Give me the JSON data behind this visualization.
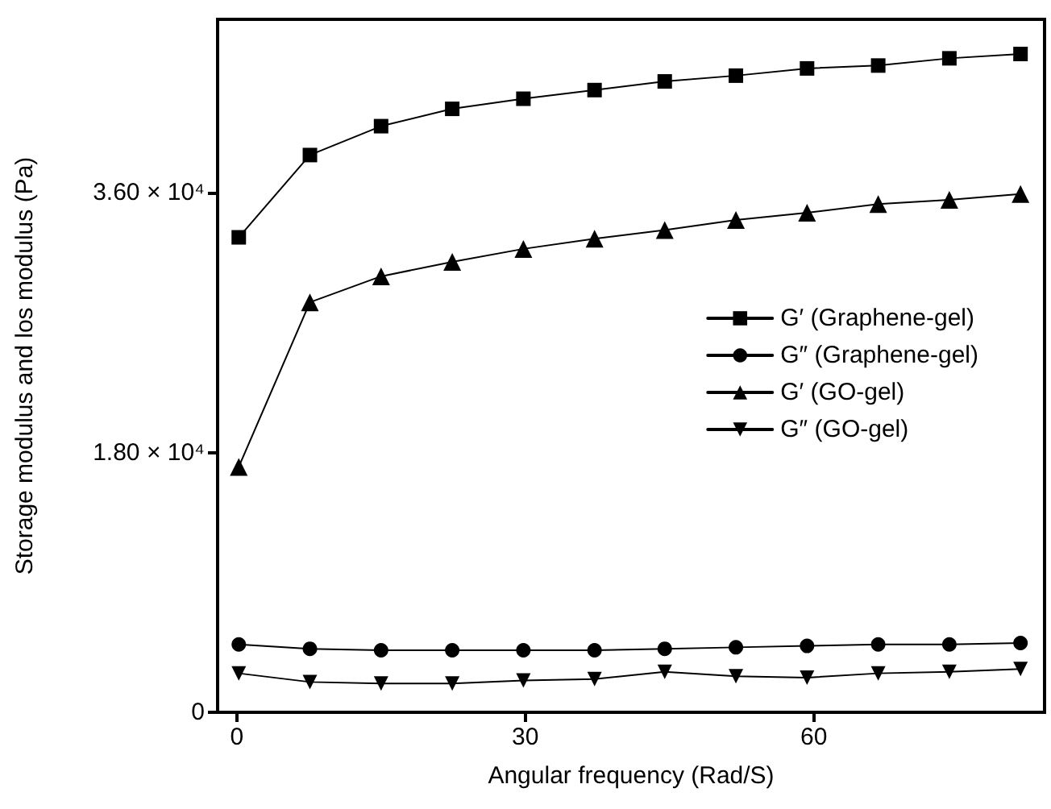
{
  "chart_data": {
    "type": "line",
    "xlabel": "Angular frequency (Rad/S)",
    "ylabel": "Storage modulus and los modulus (Pa)",
    "x": [
      0.2,
      7.6,
      15.0,
      22.4,
      29.8,
      37.2,
      44.5,
      51.9,
      59.3,
      66.7,
      74.1,
      81.5
    ],
    "xlim": [
      -2,
      84
    ],
    "xticks": [
      0,
      30,
      60
    ],
    "ylim": [
      0,
      48000
    ],
    "yticks": [
      0,
      {
        "value": 18000,
        "label": "1.80 × 10⁴"
      },
      {
        "value": 36000,
        "label": "3.60 × 10⁴"
      }
    ],
    "grid": false,
    "legend": "right",
    "line_style": "solid",
    "series": [
      {
        "name": "G′ (Graphene-gel)",
        "color": "#000000",
        "marker": "square",
        "values": [
          32900,
          38600,
          40600,
          41800,
          42500,
          43100,
          43700,
          44100,
          44600,
          44800,
          45300,
          45600
        ]
      },
      {
        "name": "G″ (Graphene-gel)",
        "color": "#000000",
        "marker": "circle",
        "values": [
          4700,
          4400,
          4300,
          4300,
          4300,
          4300,
          4400,
          4500,
          4600,
          4700,
          4700,
          4800
        ]
      },
      {
        "name": "G′ (GO-gel)",
        "color": "#000000",
        "marker": "triangle",
        "values": [
          17000,
          28400,
          30200,
          31200,
          32100,
          32800,
          33400,
          34100,
          34600,
          35200,
          35500,
          35900
        ]
      },
      {
        "name": "G″ (GO-gel)",
        "color": "#000000",
        "marker": "triangle_down",
        "values": [
          2700,
          2100,
          2000,
          2000,
          2200,
          2300,
          2800,
          2500,
          2400,
          2700,
          2800,
          3000
        ]
      }
    ]
  }
}
